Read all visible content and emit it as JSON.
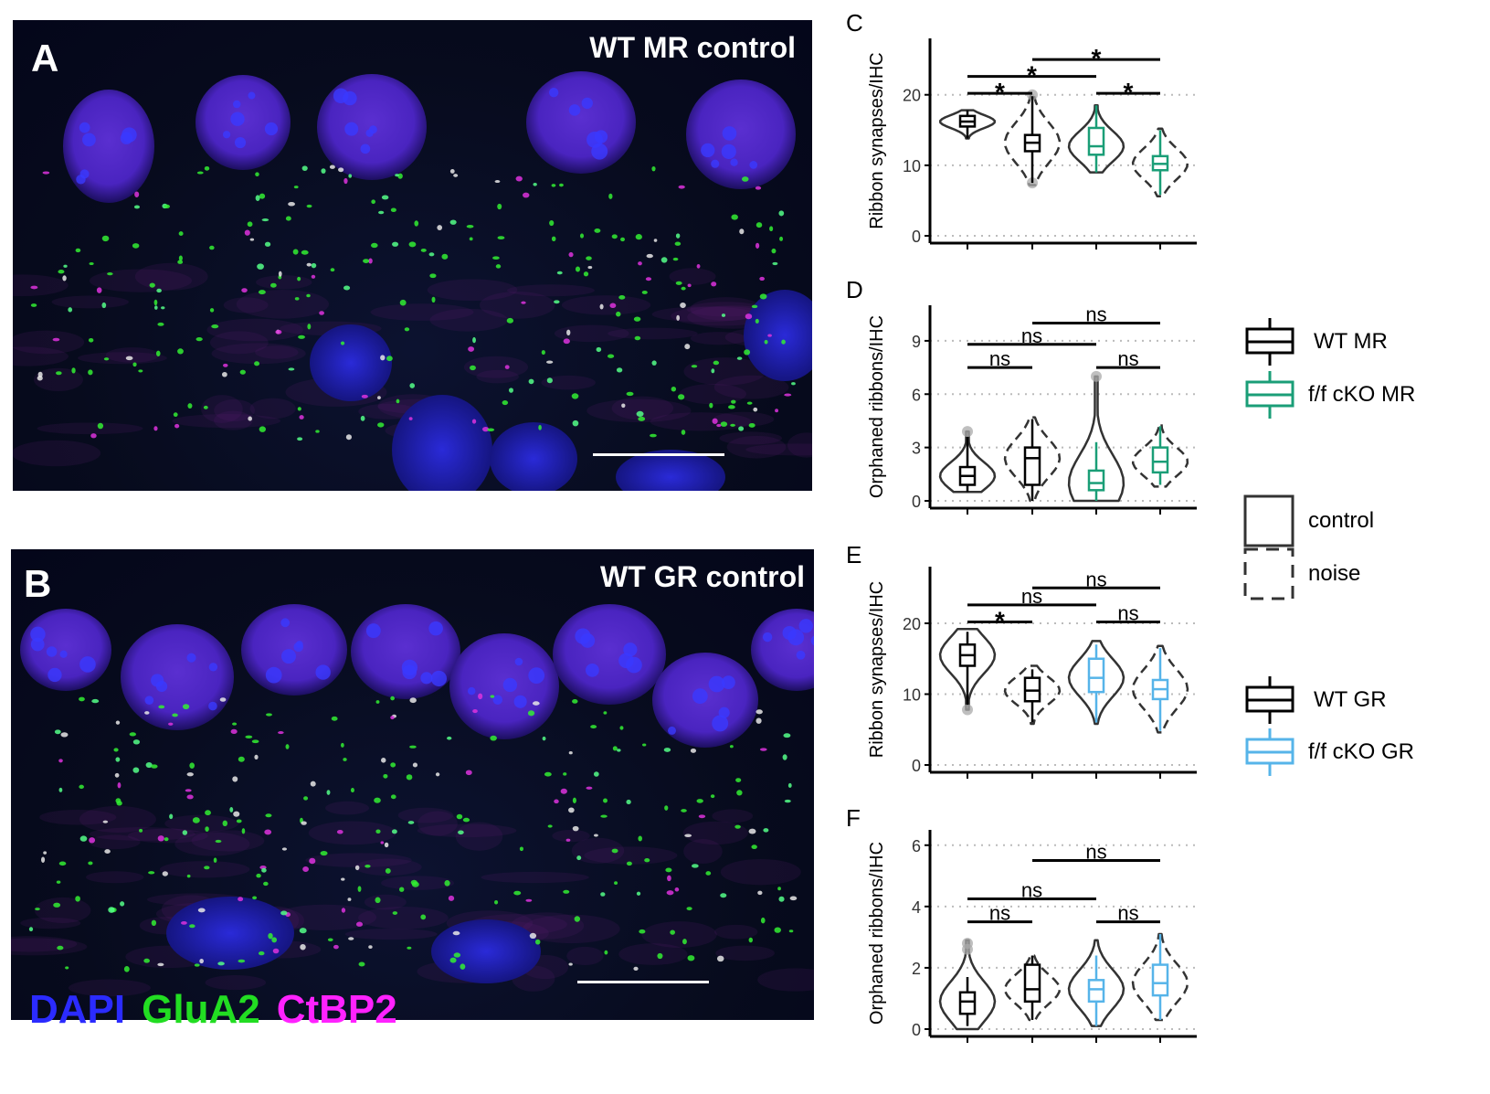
{
  "panels": {
    "A": {
      "label": "A",
      "title": "WT MR control"
    },
    "B": {
      "label": "B",
      "title": "WT GR control"
    }
  },
  "stains": [
    {
      "name": "DAPI",
      "color": "#2b2bff"
    },
    {
      "name": "GluA2",
      "color": "#22dd22"
    },
    {
      "name": "CtBP2",
      "color": "#ff22ff"
    }
  ],
  "legend": {
    "genotype_mr": [
      {
        "label": "WT MR",
        "color": "#000000"
      },
      {
        "label": "f/f cKO MR",
        "color": "#1a9e77"
      }
    ],
    "condition": [
      {
        "label": "control",
        "style": "solid"
      },
      {
        "label": "noise",
        "style": "dashed"
      }
    ],
    "genotype_gr": [
      {
        "label": "WT GR",
        "color": "#000000"
      },
      {
        "label": "f/f cKO GR",
        "color": "#56b4e9"
      }
    ]
  },
  "chart_data": [
    {
      "panel": "C",
      "type": "violin+box",
      "ylabel": "Ribbon synapses/IHC",
      "yticks": [
        0,
        10,
        20
      ],
      "ylim": [
        0,
        28
      ],
      "groups": [
        {
          "genotype": "WT MR",
          "condition": "control",
          "color": "#000000",
          "dashed": false,
          "min": 13.8,
          "q1": 15.5,
          "median": 16.2,
          "q3": 17.0,
          "max": 17.8,
          "violin_range": [
            13.8,
            17.8
          ],
          "outliers": []
        },
        {
          "genotype": "WT MR",
          "condition": "noise",
          "color": "#000000",
          "dashed": true,
          "min": 7.5,
          "q1": 12.0,
          "median": 13.2,
          "q3": 14.3,
          "max": 19.8,
          "violin_range": [
            7.2,
            19.8
          ],
          "outliers": [
            20.0,
            7.5
          ]
        },
        {
          "genotype": "f/f cKO MR",
          "condition": "control",
          "color": "#1a9e77",
          "dashed": false,
          "min": 9.0,
          "q1": 11.5,
          "median": 12.7,
          "q3": 15.3,
          "max": 18.5,
          "violin_range": [
            9.0,
            18.5
          ],
          "outliers": []
        },
        {
          "genotype": "f/f cKO MR",
          "condition": "noise",
          "color": "#1a9e77",
          "dashed": true,
          "min": 5.8,
          "q1": 9.3,
          "median": 10.2,
          "q3": 11.3,
          "max": 15.0,
          "violin_range": [
            5.6,
            15.2
          ],
          "outliers": []
        }
      ],
      "comparisons": [
        {
          "from": 1,
          "to": 2,
          "y": 20.2,
          "label": "*"
        },
        {
          "from": 1,
          "to": 3,
          "y": 22.6,
          "label": "*"
        },
        {
          "from": 2,
          "to": 4,
          "y": 25.0,
          "label": "*"
        },
        {
          "from": 3,
          "to": 4,
          "y": 20.2,
          "label": "*"
        }
      ]
    },
    {
      "panel": "D",
      "type": "violin+box",
      "ylabel": "Orphaned ribbons/IHC",
      "yticks": [
        0,
        3,
        6,
        9
      ],
      "ylim": [
        0,
        11
      ],
      "groups": [
        {
          "genotype": "WT MR",
          "condition": "control",
          "color": "#000000",
          "dashed": false,
          "min": 0.5,
          "q1": 0.9,
          "median": 1.4,
          "q3": 1.9,
          "max": 3.6,
          "violin_range": [
            0.5,
            3.9
          ],
          "outliers": [
            3.9
          ]
        },
        {
          "genotype": "WT MR",
          "condition": "noise",
          "color": "#000000",
          "dashed": true,
          "min": 0.0,
          "q1": 0.9,
          "median": 2.4,
          "q3": 3.0,
          "max": 4.6,
          "violin_range": [
            0.0,
            4.7
          ],
          "outliers": []
        },
        {
          "genotype": "f/f cKO MR",
          "condition": "control",
          "color": "#1a9e77",
          "dashed": false,
          "min": 0.0,
          "q1": 0.6,
          "median": 1.0,
          "q3": 1.7,
          "max": 3.3,
          "violin_range": [
            0.0,
            7.0
          ],
          "outliers": [
            7.0
          ]
        },
        {
          "genotype": "f/f cKO MR",
          "condition": "noise",
          "color": "#1a9e77",
          "dashed": true,
          "min": 0.9,
          "q1": 1.6,
          "median": 2.2,
          "q3": 3.0,
          "max": 4.2,
          "violin_range": [
            0.8,
            4.3
          ],
          "outliers": []
        }
      ],
      "comparisons": [
        {
          "from": 1,
          "to": 2,
          "y": 7.5,
          "label": "ns"
        },
        {
          "from": 1,
          "to": 3,
          "y": 8.8,
          "label": "ns"
        },
        {
          "from": 2,
          "to": 4,
          "y": 10.0,
          "label": "ns"
        },
        {
          "from": 3,
          "to": 4,
          "y": 7.5,
          "label": "ns"
        }
      ]
    },
    {
      "panel": "E",
      "type": "violin+box",
      "ylabel": "Ribbon synapses/IHC",
      "yticks": [
        0,
        10,
        20
      ],
      "ylim": [
        0,
        28
      ],
      "groups": [
        {
          "genotype": "WT GR",
          "condition": "control",
          "color": "#000000",
          "dashed": false,
          "min": 8.5,
          "q1": 14.0,
          "median": 15.5,
          "q3": 17.0,
          "max": 18.8,
          "violin_range": [
            7.8,
            19.2
          ],
          "outliers": [
            7.8
          ]
        },
        {
          "genotype": "WT GR",
          "condition": "noise",
          "color": "#000000",
          "dashed": true,
          "min": 6.0,
          "q1": 9.0,
          "median": 10.5,
          "q3": 12.3,
          "max": 13.5,
          "violin_range": [
            5.8,
            14.0
          ],
          "outliers": []
        },
        {
          "genotype": "f/f cKO GR",
          "condition": "control",
          "color": "#56b4e9",
          "dashed": false,
          "min": 6.0,
          "q1": 10.3,
          "median": 12.3,
          "q3": 15.0,
          "max": 17.0,
          "violin_range": [
            5.8,
            17.5
          ],
          "outliers": []
        },
        {
          "genotype": "f/f cKO GR",
          "condition": "noise",
          "color": "#56b4e9",
          "dashed": true,
          "min": 4.8,
          "q1": 9.3,
          "median": 10.7,
          "q3": 12.0,
          "max": 16.5,
          "violin_range": [
            4.6,
            16.8
          ],
          "outliers": []
        }
      ],
      "comparisons": [
        {
          "from": 1,
          "to": 2,
          "y": 20.2,
          "label": "*"
        },
        {
          "from": 1,
          "to": 3,
          "y": 22.6,
          "label": "ns"
        },
        {
          "from": 2,
          "to": 4,
          "y": 25.0,
          "label": "ns"
        },
        {
          "from": 3,
          "to": 4,
          "y": 20.2,
          "label": "ns"
        }
      ]
    },
    {
      "panel": "F",
      "type": "violin+box",
      "ylabel": "Orphaned ribbons/IHC",
      "yticks": [
        0,
        2,
        4,
        6
      ],
      "ylim": [
        0,
        6.5
      ],
      "groups": [
        {
          "genotype": "WT GR",
          "condition": "control",
          "color": "#000000",
          "dashed": false,
          "min": 0.1,
          "q1": 0.5,
          "median": 0.9,
          "q3": 1.2,
          "max": 1.7,
          "violin_range": [
            0.0,
            2.9
          ],
          "outliers": [
            2.8,
            2.6
          ]
        },
        {
          "genotype": "WT GR",
          "condition": "noise",
          "color": "#000000",
          "dashed": true,
          "min": 0.3,
          "q1": 0.9,
          "median": 1.3,
          "q3": 2.1,
          "max": 2.4,
          "violin_range": [
            0.3,
            2.4
          ],
          "outliers": []
        },
        {
          "genotype": "f/f cKO GR",
          "condition": "control",
          "color": "#56b4e9",
          "dashed": false,
          "min": 0.1,
          "q1": 0.9,
          "median": 1.3,
          "q3": 1.6,
          "max": 2.4,
          "violin_range": [
            0.1,
            2.9
          ],
          "outliers": []
        },
        {
          "genotype": "f/f cKO GR",
          "condition": "noise",
          "color": "#56b4e9",
          "dashed": true,
          "min": 0.3,
          "q1": 1.1,
          "median": 1.5,
          "q3": 2.1,
          "max": 3.1,
          "violin_range": [
            0.3,
            3.1
          ],
          "outliers": []
        }
      ],
      "comparisons": [
        {
          "from": 1,
          "to": 2,
          "y": 3.5,
          "label": "ns"
        },
        {
          "from": 1,
          "to": 3,
          "y": 4.25,
          "label": "ns"
        },
        {
          "from": 2,
          "to": 4,
          "y": 5.5,
          "label": "ns"
        },
        {
          "from": 3,
          "to": 4,
          "y": 3.5,
          "label": "ns"
        }
      ]
    }
  ]
}
